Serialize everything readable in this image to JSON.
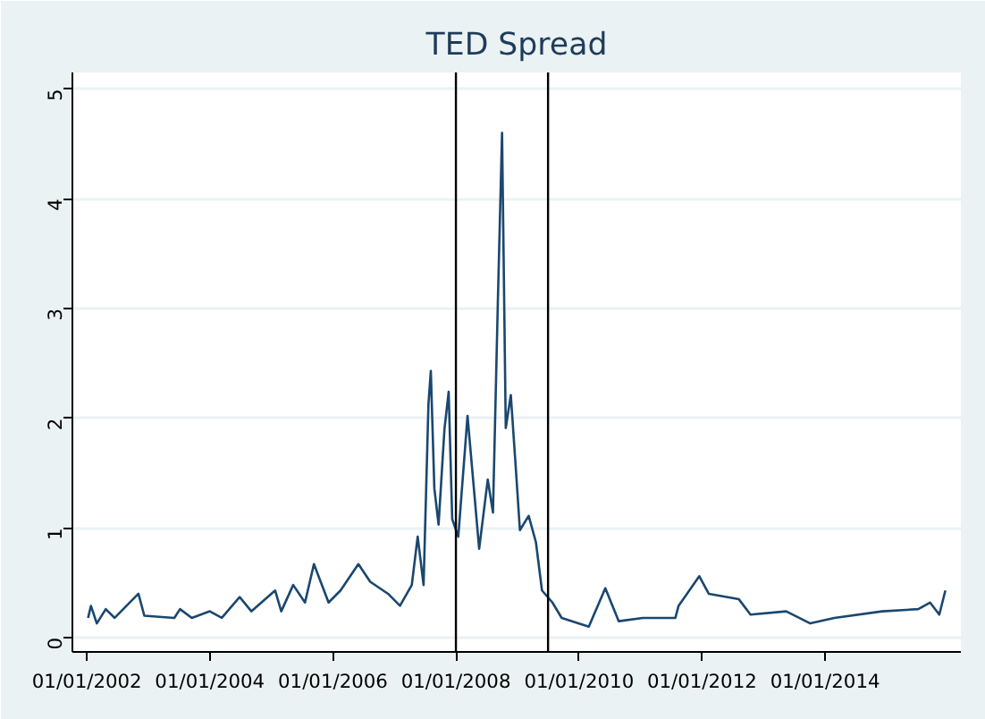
{
  "chart_data": {
    "type": "line",
    "title": "TED Spread",
    "x": [
      "2002-01-08",
      "2002-01-25",
      "2002-03-01",
      "2002-04-23",
      "2002-06-15",
      "2002-11-03",
      "2002-12-08",
      "2003-06-04",
      "2003-07-08",
      "2003-09-16",
      "2004-01-01",
      "2004-03-12",
      "2004-06-26",
      "2004-09-04",
      "2005-01-23",
      "2005-02-28",
      "2005-05-10",
      "2005-07-19",
      "2005-09-10",
      "2005-12-06",
      "2006-02-15",
      "2006-06-01",
      "2006-08-10",
      "2006-11-24",
      "2007-02-03",
      "2007-04-14",
      "2007-05-19",
      "2007-06-23",
      "2007-07-22",
      "2007-08-05",
      "2007-08-26",
      "2007-09-20",
      "2007-10-25",
      "2007-11-19",
      "2007-12-10",
      "2008-01-15",
      "2008-03-10",
      "2008-05-18",
      "2008-07-08",
      "2008-08-08",
      "2008-09-06",
      "2008-10-01",
      "2008-10-23",
      "2008-11-22",
      "2008-12-20",
      "2009-01-15",
      "2009-03-08",
      "2009-04-20",
      "2009-05-26",
      "2009-07-27",
      "2009-09-20",
      "2010-02-28",
      "2010-06-06",
      "2010-08-25",
      "2011-01-15",
      "2011-07-27",
      "2011-08-15",
      "2011-12-16",
      "2012-02-10",
      "2012-08-07",
      "2012-10-15",
      "2013-05-15",
      "2013-10-05",
      "2014-02-25",
      "2014-12-05",
      "2015-07-08",
      "2015-09-16",
      "2015-11-10",
      "2015-12-16"
    ],
    "series": [
      {
        "color": "#1a476f",
        "values": [
          0.18,
          0.29,
          0.13,
          0.26,
          0.18,
          0.4,
          0.2,
          0.18,
          0.26,
          0.18,
          0.24,
          0.18,
          0.37,
          0.24,
          0.43,
          0.24,
          0.48,
          0.32,
          0.67,
          0.32,
          0.43,
          0.67,
          0.51,
          0.4,
          0.29,
          0.48,
          0.92,
          0.48,
          2.13,
          2.43,
          1.36,
          1.03,
          1.9,
          2.24,
          1.08,
          0.92,
          2.02,
          0.81,
          1.44,
          1.14,
          3.06,
          4.6,
          1.91,
          2.21,
          1.58,
          0.98,
          1.11,
          0.87,
          0.43,
          0.32,
          0.18,
          0.1,
          0.45,
          0.15,
          0.18,
          0.18,
          0.29,
          0.56,
          0.4,
          0.35,
          0.21,
          0.24,
          0.13,
          0.18,
          0.24,
          0.26,
          0.32,
          0.21,
          0.43
        ]
      }
    ],
    "xlim": [
      "2001-10-07",
      "2016-03-17"
    ],
    "xticks": [
      {
        "value": "2002-01-01",
        "label": "01/01/2002"
      },
      {
        "value": "2004-01-01",
        "label": "01/01/2004"
      },
      {
        "value": "2006-01-01",
        "label": "01/01/2006"
      },
      {
        "value": "2008-01-01",
        "label": "01/01/2008"
      },
      {
        "value": "2010-01-01",
        "label": "01/01/2010"
      },
      {
        "value": "2012-01-01",
        "label": "01/01/2012"
      },
      {
        "value": "2014-01-01",
        "label": "01/01/2014"
      }
    ],
    "ylim": [
      -0.13,
      5.15
    ],
    "yticks": [
      0,
      1,
      2,
      3,
      4,
      5
    ],
    "ref_lines": [
      {
        "axis": "x",
        "value": "2008-01-01",
        "color": "#000000"
      },
      {
        "axis": "x",
        "value": "2009-07-01",
        "color": "#000000"
      }
    ],
    "grid": "y",
    "marker": "none",
    "line_style": "solid"
  }
}
